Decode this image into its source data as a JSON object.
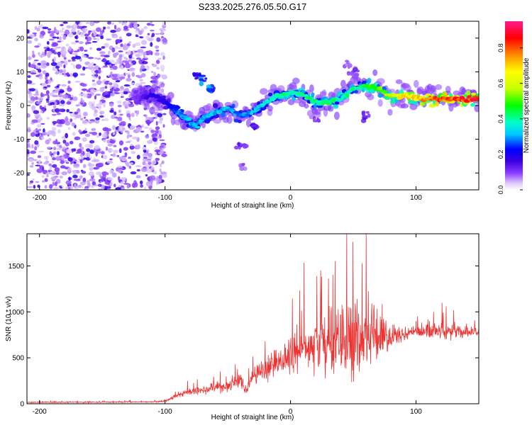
{
  "title": "S233.2025.276.05.50.G17",
  "chart_data": [
    {
      "type": "heatmap",
      "name": "spectrogram",
      "xlabel": "Height of straight line (km)",
      "ylabel": "Frequency (Hz)",
      "xlim": [
        -210,
        150
      ],
      "ylim": [
        -25,
        25
      ],
      "xticks": [
        -200,
        -100,
        0,
        100
      ],
      "yticks": [
        -20,
        -10,
        0,
        10,
        20
      ],
      "colorbar": {
        "label": "Normalized spectral amplitude",
        "range": [
          0.0,
          0.95
        ],
        "ticks": [
          0.0,
          0.2,
          0.4,
          0.6,
          0.8
        ]
      },
      "ridge": {
        "x": [
          -125,
          -110,
          -100,
          -90,
          -80,
          -75,
          -70,
          -60,
          -50,
          -40,
          -30,
          -20,
          -10,
          0,
          10,
          20,
          30,
          40,
          50,
          60,
          70,
          80,
          90,
          100,
          110,
          120,
          130,
          140,
          150
        ],
        "freq": [
          2,
          3,
          1,
          -2,
          -5,
          -6,
          -4,
          -2,
          -1,
          -3,
          -2,
          1,
          3,
          4,
          3,
          1,
          1,
          2,
          5,
          6,
          5,
          3,
          3,
          2,
          2,
          2,
          2,
          2,
          2
        ],
        "amplitude": [
          0.1,
          0.2,
          0.2,
          0.3,
          0.35,
          0.35,
          0.35,
          0.35,
          0.35,
          0.3,
          0.35,
          0.4,
          0.45,
          0.45,
          0.45,
          0.45,
          0.45,
          0.45,
          0.45,
          0.5,
          0.55,
          0.65,
          0.75,
          0.8,
          0.85,
          0.9,
          0.92,
          0.92,
          0.92
        ]
      },
      "noise_region": [
        -210,
        -100
      ]
    },
    {
      "type": "line",
      "name": "snr",
      "xlabel": "Height of straight line (km)",
      "ylabel": "SNR (10 * v/v)",
      "xlim": [
        -210,
        150
      ],
      "ylim": [
        0,
        1850
      ],
      "xticks": [
        -200,
        -100,
        0,
        100
      ],
      "yticks": [
        0,
        500,
        1000,
        1500
      ],
      "color": "#ee3333",
      "envelope": {
        "x": [
          -210,
          -110,
          -100,
          -90,
          -80,
          -60,
          -50,
          -40,
          -35,
          -30,
          -20,
          -10,
          0,
          10,
          20,
          30,
          40,
          50,
          60,
          70,
          80,
          90,
          100,
          110,
          120,
          130,
          140,
          150
        ],
        "mean": [
          15,
          20,
          30,
          90,
          130,
          180,
          200,
          240,
          150,
          280,
          380,
          450,
          520,
          600,
          640,
          650,
          680,
          700,
          700,
          720,
          740,
          760,
          780,
          790,
          790,
          790,
          780,
          780
        ],
        "amp": [
          10,
          10,
          20,
          40,
          60,
          90,
          120,
          160,
          100,
          130,
          200,
          260,
          350,
          420,
          480,
          600,
          700,
          750,
          650,
          450,
          250,
          120,
          110,
          110,
          140,
          150,
          110,
          90
        ]
      }
    }
  ]
}
